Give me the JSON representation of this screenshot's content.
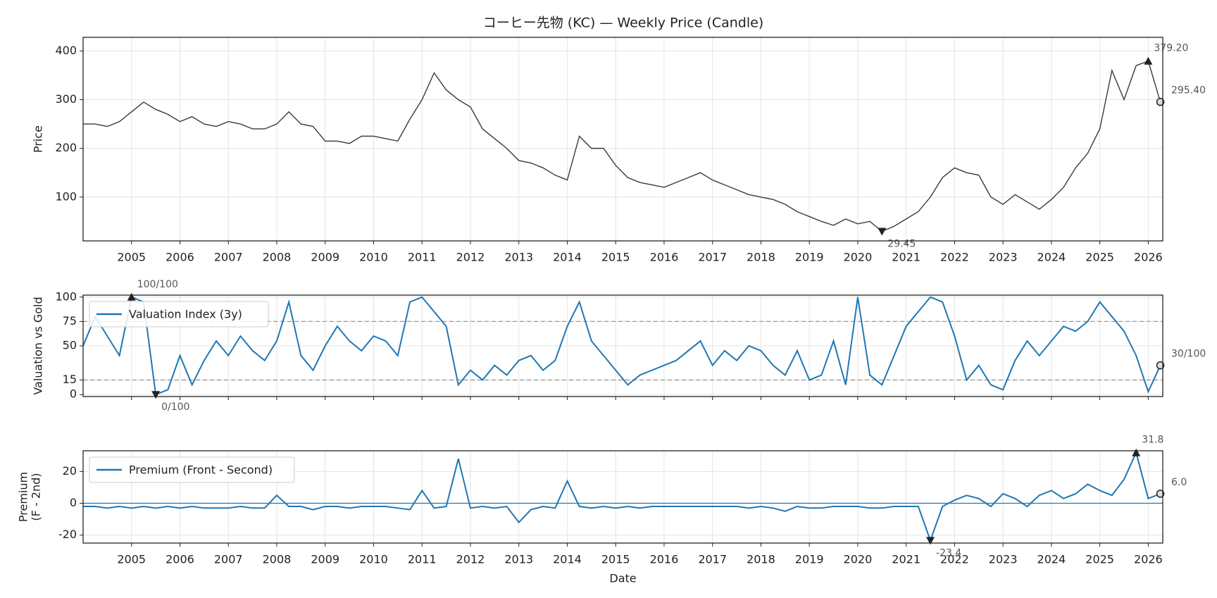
{
  "title": "コーヒー先物 (KC) — Weekly Price (Candle)",
  "chart_data": [
    {
      "type": "line",
      "ylabel": [
        "Price"
      ],
      "color": "#3a3a3a",
      "grid": true,
      "xticklabels": true,
      "xlim": [
        2004.0,
        2026.3
      ],
      "xticks": [
        2005,
        2006,
        2007,
        2008,
        2009,
        2010,
        2011,
        2012,
        2013,
        2014,
        2015,
        2016,
        2017,
        2018,
        2019,
        2020,
        2021,
        2022,
        2023,
        2024,
        2025,
        2026
      ],
      "ylim": [
        10,
        428
      ],
      "yticks": [
        100,
        200,
        300,
        400
      ],
      "x": [
        2004,
        2004.25,
        2004.5,
        2004.75,
        2005,
        2005.25,
        2005.5,
        2005.75,
        2006,
        2006.25,
        2006.5,
        2006.75,
        2007,
        2007.25,
        2007.5,
        2007.75,
        2008,
        2008.25,
        2008.5,
        2008.75,
        2009,
        2009.25,
        2009.5,
        2009.75,
        2010,
        2010.25,
        2010.5,
        2010.75,
        2011,
        2011.25,
        2011.5,
        2011.75,
        2012,
        2012.25,
        2012.5,
        2012.75,
        2013,
        2013.25,
        2013.5,
        2013.75,
        2014,
        2014.25,
        2014.5,
        2014.75,
        2015,
        2015.25,
        2015.5,
        2015.75,
        2016,
        2016.25,
        2016.5,
        2016.75,
        2017,
        2017.25,
        2017.5,
        2017.75,
        2018,
        2018.25,
        2018.5,
        2018.75,
        2019,
        2019.25,
        2019.5,
        2019.75,
        2020,
        2020.25,
        2020.5,
        2020.75,
        2021,
        2021.25,
        2021.5,
        2021.75,
        2022,
        2022.25,
        2022.5,
        2022.75,
        2023,
        2023.25,
        2023.5,
        2023.75,
        2024,
        2024.25,
        2024.5,
        2024.75,
        2025,
        2025.25,
        2025.5,
        2025.75,
        2026,
        2026.25
      ],
      "values": [
        250,
        250,
        245,
        255,
        275,
        295,
        280,
        270,
        255,
        265,
        250,
        245,
        255,
        250,
        240,
        240,
        250,
        275,
        250,
        245,
        215,
        215,
        210,
        225,
        225,
        220,
        215,
        260,
        300,
        355,
        320,
        300,
        285,
        240,
        220,
        200,
        175,
        170,
        160,
        145,
        135,
        225,
        200,
        200,
        165,
        140,
        130,
        125,
        120,
        130,
        140,
        150,
        135,
        125,
        115,
        105,
        100,
        95,
        85,
        70,
        60,
        50,
        42,
        55,
        45,
        50,
        29.45,
        40,
        55,
        70,
        100,
        140,
        160,
        150,
        145,
        100,
        85,
        105,
        90,
        75,
        95,
        120,
        160,
        190,
        240,
        360,
        300,
        370,
        379.2,
        295.4
      ],
      "value_labels": [
        null,
        null,
        null,
        null,
        null,
        null,
        null,
        null,
        null,
        null,
        null,
        null,
        null,
        null,
        null,
        null,
        null,
        null,
        null,
        null,
        null,
        null,
        null,
        null,
        null,
        null,
        null,
        null,
        null,
        null,
        null,
        null,
        null,
        null,
        null,
        null,
        null,
        null,
        null,
        null,
        null,
        null,
        null,
        null,
        null,
        null,
        null,
        null,
        null,
        null,
        null,
        null,
        null,
        null,
        null,
        null,
        null,
        null,
        null,
        null,
        null,
        null,
        null,
        null,
        null,
        null,
        "29.45",
        null,
        null,
        null,
        null,
        null,
        null,
        null,
        null,
        null,
        null,
        null,
        null,
        null,
        null,
        null,
        null,
        null,
        null,
        null,
        null,
        null,
        "379.20",
        "295.40"
      ]
    },
    {
      "type": "line",
      "ylabel": [
        "Valuation vs Gold"
      ],
      "grid": true,
      "xticklabels": false,
      "legend": "upper left",
      "xlim": [
        2004.0,
        2026.3
      ],
      "xticks": [
        2005,
        2006,
        2007,
        2008,
        2009,
        2010,
        2011,
        2012,
        2013,
        2014,
        2015,
        2016,
        2017,
        2018,
        2019,
        2020,
        2021,
        2022,
        2023,
        2024,
        2025,
        2026
      ],
      "ylim": [
        -2,
        102
      ],
      "yticks": [
        0,
        15,
        50,
        75,
        100
      ],
      "hlines": [
        {
          "value": 75,
          "style": "dashed",
          "color": "#999999"
        },
        {
          "value": 15,
          "style": "dashed",
          "color": "#999999"
        }
      ],
      "x": [
        2004,
        2004.25,
        2004.5,
        2004.75,
        2005,
        2005.25,
        2005.5,
        2005.75,
        2006,
        2006.25,
        2006.5,
        2006.75,
        2007,
        2007.25,
        2007.5,
        2007.75,
        2008,
        2008.25,
        2008.5,
        2008.75,
        2009,
        2009.25,
        2009.5,
        2009.75,
        2010,
        2010.25,
        2010.5,
        2010.75,
        2011,
        2011.25,
        2011.5,
        2011.75,
        2012,
        2012.25,
        2012.5,
        2012.75,
        2013,
        2013.25,
        2013.5,
        2013.75,
        2014,
        2014.25,
        2014.5,
        2014.75,
        2015,
        2015.25,
        2015.5,
        2015.75,
        2016,
        2016.25,
        2016.5,
        2016.75,
        2017,
        2017.25,
        2017.5,
        2017.75,
        2018,
        2018.25,
        2018.5,
        2018.75,
        2019,
        2019.25,
        2019.5,
        2019.75,
        2020,
        2020.25,
        2020.5,
        2020.75,
        2021,
        2021.25,
        2021.5,
        2021.75,
        2022,
        2022.25,
        2022.5,
        2022.75,
        2023,
        2023.25,
        2023.5,
        2023.75,
        2024,
        2024.25,
        2024.5,
        2024.75,
        2025,
        2025.25,
        2025.5,
        2025.75,
        2026,
        2026.25
      ],
      "series": [
        {
          "name": "Valuation Index (3y)",
          "color": "#1f77b4",
          "values": [
            50,
            80,
            60,
            40,
            100,
            95,
            0,
            5,
            40,
            10,
            35,
            55,
            40,
            60,
            45,
            35,
            55,
            95,
            40,
            25,
            50,
            70,
            55,
            45,
            60,
            55,
            40,
            95,
            100,
            85,
            70,
            10,
            25,
            15,
            30,
            20,
            35,
            40,
            25,
            35,
            70,
            95,
            55,
            40,
            25,
            10,
            20,
            25,
            30,
            35,
            45,
            55,
            30,
            45,
            35,
            50,
            45,
            30,
            20,
            45,
            15,
            20,
            55,
            10,
            100,
            20,
            10,
            40,
            70,
            85,
            100,
            95,
            60,
            15,
            30,
            10,
            5,
            35,
            55,
            40,
            55,
            70,
            65,
            75,
            95,
            80,
            65,
            40,
            3,
            30
          ],
          "value_labels": [
            null,
            null,
            null,
            null,
            "100/100",
            null,
            "0/100",
            null,
            null,
            null,
            null,
            null,
            null,
            null,
            null,
            null,
            null,
            null,
            null,
            null,
            null,
            null,
            null,
            null,
            null,
            null,
            null,
            null,
            null,
            null,
            null,
            null,
            null,
            null,
            null,
            null,
            null,
            null,
            null,
            null,
            null,
            null,
            null,
            null,
            null,
            null,
            null,
            null,
            null,
            null,
            null,
            null,
            null,
            null,
            null,
            null,
            null,
            null,
            null,
            null,
            null,
            null,
            null,
            null,
            null,
            null,
            null,
            null,
            null,
            null,
            null,
            null,
            null,
            null,
            null,
            null,
            null,
            null,
            null,
            null,
            null,
            null,
            null,
            null,
            null,
            null,
            null,
            null,
            null,
            "30/100"
          ]
        }
      ]
    },
    {
      "type": "line",
      "ylabel": [
        "Premium",
        "(F - 2nd)"
      ],
      "xlabel": "Date",
      "grid": true,
      "xticklabels": true,
      "legend": "upper left",
      "xlim": [
        2004.0,
        2026.3
      ],
      "xticks": [
        2005,
        2006,
        2007,
        2008,
        2009,
        2010,
        2011,
        2012,
        2013,
        2014,
        2015,
        2016,
        2017,
        2018,
        2019,
        2020,
        2021,
        2022,
        2023,
        2024,
        2025,
        2026
      ],
      "ylim": [
        -25,
        33
      ],
      "yticks": [
        -20,
        0,
        20
      ],
      "hlines": [
        {
          "value": 0,
          "style": "solid",
          "color": "#1f77b4"
        }
      ],
      "x": [
        2004,
        2004.25,
        2004.5,
        2004.75,
        2005,
        2005.25,
        2005.5,
        2005.75,
        2006,
        2006.25,
        2006.5,
        2006.75,
        2007,
        2007.25,
        2007.5,
        2007.75,
        2008,
        2008.25,
        2008.5,
        2008.75,
        2009,
        2009.25,
        2009.5,
        2009.75,
        2010,
        2010.25,
        2010.5,
        2010.75,
        2011,
        2011.25,
        2011.5,
        2011.75,
        2012,
        2012.25,
        2012.5,
        2012.75,
        2013,
        2013.25,
        2013.5,
        2013.75,
        2014,
        2014.25,
        2014.5,
        2014.75,
        2015,
        2015.25,
        2015.5,
        2015.75,
        2016,
        2016.25,
        2016.5,
        2016.75,
        2017,
        2017.25,
        2017.5,
        2017.75,
        2018,
        2018.25,
        2018.5,
        2018.75,
        2019,
        2019.25,
        2019.5,
        2019.75,
        2020,
        2020.25,
        2020.5,
        2020.75,
        2021,
        2021.25,
        2021.5,
        2021.75,
        2022,
        2022.25,
        2022.5,
        2022.75,
        2023,
        2023.25,
        2023.5,
        2023.75,
        2024,
        2024.25,
        2024.5,
        2024.75,
        2025,
        2025.25,
        2025.5,
        2025.75,
        2026,
        2026.25
      ],
      "series": [
        {
          "name": "Premium (Front - Second)",
          "color": "#1f77b4",
          "values": [
            -2,
            -2,
            -3,
            -2,
            -3,
            -2,
            -3,
            -2,
            -3,
            -2,
            -3,
            -3,
            -3,
            -2,
            -3,
            -3,
            5,
            -2,
            -2,
            -4,
            -2,
            -2,
            -3,
            -2,
            -2,
            -2,
            -3,
            -4,
            8,
            -3,
            -2,
            28,
            -3,
            -2,
            -3,
            -2,
            -12,
            -4,
            -2,
            -3,
            14,
            -2,
            -3,
            -2,
            -3,
            -2,
            -3,
            -2,
            -2,
            -2,
            -2,
            -2,
            -2,
            -2,
            -2,
            -3,
            -2,
            -3,
            -5,
            -2,
            -3,
            -3,
            -2,
            -2,
            -2,
            -3,
            -3,
            -2,
            -2,
            -2,
            -23.4,
            -2,
            2,
            5,
            3,
            -2,
            6,
            3,
            -2,
            5,
            8,
            3,
            6,
            12,
            8,
            5,
            15,
            31.8,
            3,
            6.0
          ],
          "value_labels": [
            null,
            null,
            null,
            null,
            null,
            null,
            null,
            null,
            null,
            null,
            null,
            null,
            null,
            null,
            null,
            null,
            null,
            null,
            null,
            null,
            null,
            null,
            null,
            null,
            null,
            null,
            null,
            null,
            null,
            null,
            null,
            null,
            null,
            null,
            null,
            null,
            null,
            null,
            null,
            null,
            null,
            null,
            null,
            null,
            null,
            null,
            null,
            null,
            null,
            null,
            null,
            null,
            null,
            null,
            null,
            null,
            null,
            null,
            null,
            null,
            null,
            null,
            null,
            null,
            null,
            null,
            null,
            null,
            null,
            null,
            "-23.4",
            null,
            null,
            null,
            null,
            null,
            null,
            null,
            null,
            null,
            null,
            null,
            null,
            null,
            null,
            null,
            null,
            "31.8",
            null,
            "6.0"
          ]
        }
      ]
    }
  ]
}
